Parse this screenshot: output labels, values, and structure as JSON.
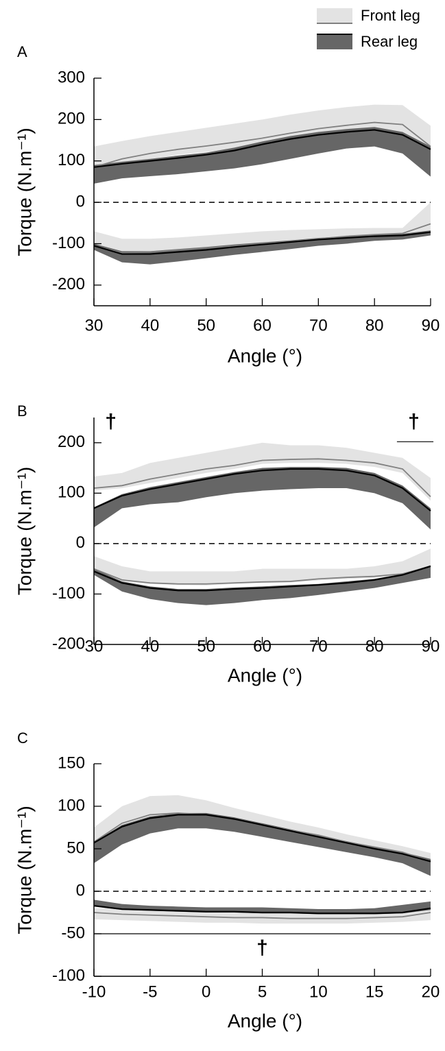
{
  "chart_data": [
    {
      "type": "band-line",
      "panel_label": "A",
      "x_label": "Angle (°)",
      "y_label": "Torque (N.m⁻¹)",
      "legend": [
        {
          "name": "Front leg",
          "fill": "#e3e3e3",
          "color": "#808080"
        },
        {
          "name": "Rear leg",
          "fill": "#666666",
          "color": "#000000"
        }
      ],
      "xlim": [
        30,
        90
      ],
      "xticks": [
        30,
        40,
        50,
        60,
        70,
        80,
        90
      ],
      "ylim": [
        -250,
        300
      ],
      "yticks": [
        -200,
        -100,
        0,
        100,
        200,
        300
      ],
      "zero_line": true,
      "x": [
        30,
        35,
        40,
        45,
        50,
        55,
        60,
        65,
        70,
        75,
        80,
        85,
        90
      ],
      "series": [
        {
          "fill": "#e3e3e3",
          "color": "#808080",
          "values": [
            85,
            105,
            118,
            128,
            136,
            145,
            155,
            167,
            178,
            186,
            193,
            188,
            135
          ],
          "upper": [
            135,
            148,
            160,
            170,
            180,
            190,
            200,
            212,
            222,
            230,
            236,
            235,
            185
          ],
          "lower": [
            80,
            95,
            105,
            115,
            122,
            130,
            140,
            150,
            160,
            170,
            175,
            170,
            110
          ]
        },
        {
          "fill": "#e3e3e3",
          "color": "#808080",
          "values": [
            -105,
            -122,
            -120,
            -115,
            -110,
            -105,
            -100,
            -95,
            -88,
            -82,
            -78,
            -75,
            -52
          ],
          "upper": [
            -70,
            -88,
            -88,
            -85,
            -80,
            -75,
            -70,
            -67,
            -65,
            -63,
            -62,
            -62,
            0
          ],
          "lower": [
            -108,
            -125,
            -128,
            -122,
            -115,
            -110,
            -105,
            -98,
            -92,
            -86,
            -82,
            -80,
            -75
          ]
        },
        {
          "fill": "#666666",
          "color": "#000000",
          "values": [
            85,
            93,
            100,
            107,
            115,
            125,
            140,
            153,
            163,
            170,
            175,
            163,
            128
          ],
          "upper": [
            90,
            98,
            105,
            113,
            120,
            132,
            147,
            160,
            170,
            177,
            182,
            170,
            135
          ],
          "lower": [
            45,
            58,
            63,
            68,
            75,
            82,
            92,
            105,
            118,
            130,
            135,
            118,
            62
          ]
        },
        {
          "fill": "#666666",
          "color": "#000000",
          "values": [
            -105,
            -125,
            -125,
            -120,
            -115,
            -108,
            -102,
            -96,
            -90,
            -86,
            -82,
            -80,
            -72
          ],
          "upper": [
            -100,
            -118,
            -118,
            -113,
            -108,
            -102,
            -97,
            -92,
            -86,
            -82,
            -78,
            -76,
            -68
          ],
          "lower": [
            -115,
            -145,
            -150,
            -143,
            -135,
            -127,
            -120,
            -113,
            -105,
            -100,
            -93,
            -90,
            -80
          ]
        }
      ]
    },
    {
      "type": "band-line",
      "panel_label": "B",
      "x_label": "Angle (°)",
      "y_label": "Torque (N.m⁻¹)",
      "xlim": [
        30,
        90
      ],
      "xticks": [
        30,
        40,
        50,
        60,
        70,
        80,
        90
      ],
      "ylim": [
        -200,
        250
      ],
      "yticks": [
        -200,
        -100,
        0,
        100,
        200
      ],
      "zero_line": true,
      "x": [
        30,
        35,
        40,
        45,
        50,
        55,
        60,
        65,
        70,
        75,
        80,
        85,
        90
      ],
      "series": [
        {
          "fill": "#e3e3e3",
          "color": "#808080",
          "values": [
            110,
            115,
            128,
            138,
            148,
            155,
            165,
            167,
            168,
            165,
            160,
            148,
            93
          ],
          "upper": [
            133,
            140,
            160,
            170,
            180,
            190,
            200,
            195,
            195,
            190,
            180,
            170,
            130
          ],
          "lower": [
            105,
            110,
            120,
            130,
            140,
            148,
            158,
            160,
            160,
            158,
            152,
            140,
            85
          ]
        },
        {
          "fill": "#e3e3e3",
          "color": "#808080",
          "values": [
            -50,
            -72,
            -78,
            -80,
            -80,
            -78,
            -76,
            -75,
            -70,
            -67,
            -65,
            -60,
            -45
          ],
          "upper": [
            -25,
            -45,
            -55,
            -55,
            -55,
            -55,
            -50,
            -50,
            -50,
            -50,
            -45,
            -35,
            -10
          ],
          "lower": [
            -55,
            -75,
            -80,
            -82,
            -83,
            -80,
            -78,
            -77,
            -73,
            -70,
            -68,
            -62,
            -48
          ]
        },
        {
          "fill": "#666666",
          "color": "#000000",
          "values": [
            70,
            95,
            108,
            118,
            128,
            138,
            145,
            148,
            148,
            145,
            135,
            110,
            65
          ],
          "upper": [
            72,
            98,
            112,
            122,
            132,
            142,
            150,
            152,
            152,
            150,
            140,
            115,
            70
          ],
          "lower": [
            32,
            70,
            78,
            82,
            92,
            100,
            105,
            108,
            110,
            110,
            100,
            80,
            28
          ]
        },
        {
          "fill": "#666666",
          "color": "#000000",
          "values": [
            -55,
            -78,
            -88,
            -93,
            -93,
            -90,
            -88,
            -85,
            -82,
            -78,
            -72,
            -62,
            -45
          ],
          "upper": [
            -50,
            -75,
            -85,
            -90,
            -90,
            -87,
            -85,
            -82,
            -80,
            -75,
            -70,
            -60,
            -43
          ],
          "lower": [
            -62,
            -95,
            -110,
            -118,
            -122,
            -118,
            -112,
            -108,
            -102,
            -95,
            -88,
            -78,
            -68
          ]
        }
      ],
      "annotations": [
        {
          "text": "†",
          "x": 33,
          "y": 240
        },
        {
          "text": "†",
          "x": 87,
          "y": 240
        }
      ],
      "sig_lines": [
        {
          "x": [
            84,
            90.5
          ],
          "y": 202
        }
      ]
    },
    {
      "type": "band-line",
      "panel_label": "C",
      "x_label": "Angle (°)",
      "y_label": "Torque (N.m⁻¹)",
      "xlim": [
        -10,
        20
      ],
      "xticks": [
        -10,
        -5,
        0,
        5,
        10,
        15,
        20
      ],
      "ylim": [
        -100,
        150
      ],
      "yticks": [
        -100,
        -50,
        0,
        50,
        100,
        150
      ],
      "zero_line": true,
      "x": [
        -10,
        -7.5,
        -5,
        -2.5,
        0,
        2.5,
        5,
        7.5,
        10,
        12.5,
        15,
        17.5,
        20
      ],
      "series": [
        {
          "fill": "#e3e3e3",
          "color": "#808080",
          "values": [
            58,
            80,
            90,
            92,
            90,
            85,
            78,
            72,
            66,
            58,
            52,
            46,
            35
          ],
          "upper": [
            75,
            100,
            112,
            113,
            107,
            98,
            90,
            82,
            75,
            67,
            60,
            53,
            45
          ],
          "lower": [
            55,
            75,
            85,
            87,
            85,
            80,
            74,
            68,
            62,
            55,
            48,
            42,
            30
          ]
        },
        {
          "fill": "#e3e3e3",
          "color": "#808080",
          "values": [
            -25,
            -27,
            -28,
            -29,
            -30,
            -31,
            -31,
            -32,
            -32,
            -32,
            -31,
            -30,
            -25
          ],
          "upper": [
            -20,
            -20,
            -22,
            -23,
            -24,
            -25,
            -25,
            -26,
            -26,
            -26,
            -25,
            -24,
            -20
          ],
          "lower": [
            -33,
            -34,
            -35,
            -36,
            -37,
            -37,
            -38,
            -38,
            -38,
            -38,
            -37,
            -36,
            -34
          ]
        },
        {
          "fill": "#666666",
          "color": "#000000",
          "values": [
            57,
            76,
            86,
            90,
            90,
            85,
            78,
            71,
            64,
            57,
            50,
            44,
            35
          ],
          "upper": [
            58,
            78,
            88,
            92,
            92,
            87,
            80,
            73,
            66,
            59,
            52,
            46,
            38
          ],
          "lower": [
            33,
            55,
            68,
            74,
            74,
            70,
            64,
            58,
            52,
            46,
            40,
            33,
            18
          ]
        },
        {
          "fill": "#666666",
          "color": "#000000",
          "values": [
            -17,
            -21,
            -22,
            -23,
            -24,
            -24,
            -25,
            -25,
            -26,
            -26,
            -26,
            -25,
            -20
          ],
          "upper": [
            -10,
            -15,
            -17,
            -18,
            -19,
            -19,
            -19,
            -20,
            -21,
            -21,
            -20,
            -16,
            -12
          ],
          "lower": [
            -18,
            -22,
            -23,
            -24,
            -25,
            -25,
            -26,
            -26,
            -27,
            -27,
            -27,
            -26,
            -22
          ]
        }
      ],
      "annotations": [
        {
          "text": "†",
          "x": 5,
          "y": -68
        }
      ],
      "sig_lines": [
        {
          "x": [
            -10,
            20
          ],
          "y": -50
        }
      ]
    }
  ]
}
